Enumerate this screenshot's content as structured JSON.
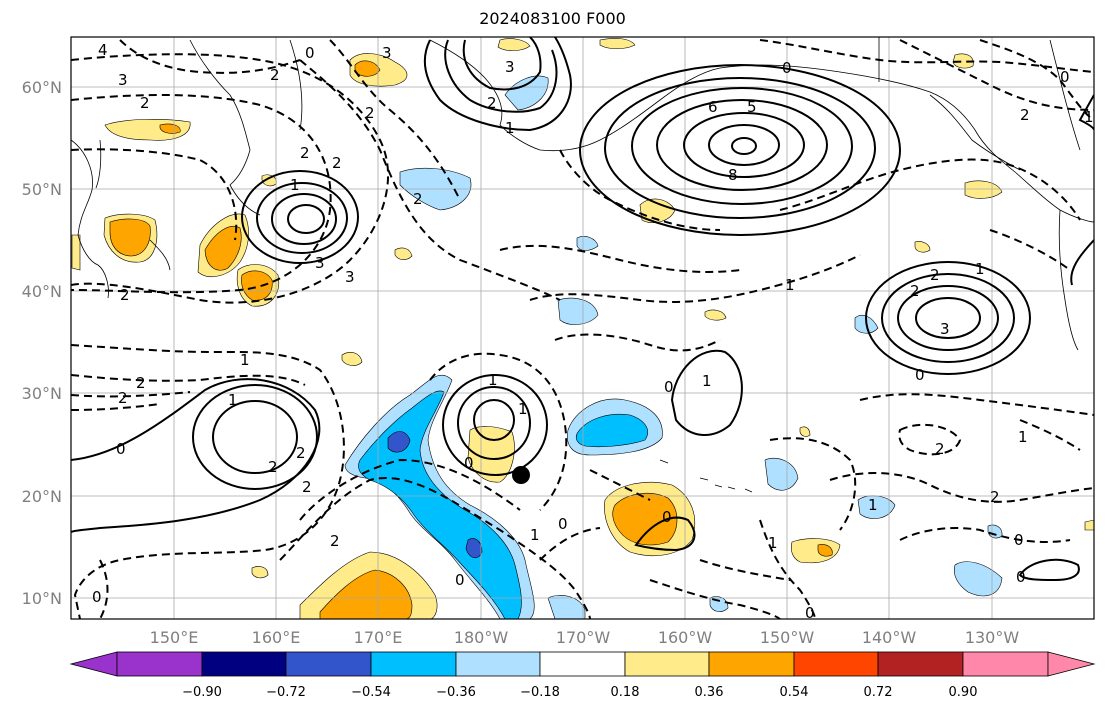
{
  "title": "2024083100 F000",
  "latitude_labels": [
    "60°N",
    "50°N",
    "40°N",
    "30°N",
    "20°N",
    "10°N"
  ],
  "longitude_labels": [
    "150°E",
    "160°E",
    "170°E",
    "180°W",
    "170°W",
    "160°W",
    "150°W",
    "140°W",
    "130°W"
  ],
  "colorbar": {
    "tick_labels": [
      "−0.90",
      "−0.72",
      "−0.54",
      "−0.36",
      "−0.18",
      "0.18",
      "0.36",
      "0.54",
      "0.72",
      "0.90"
    ],
    "colors": [
      "#9933cc",
      "#000080",
      "#3355cc",
      "#00bfff",
      "#b0e0ff",
      "#ffffff",
      "#ffeb8a",
      "#ffa500",
      "#ff4500",
      "#b22222",
      "#ff88aa"
    ]
  },
  "contour_labels": [
    "4",
    "3",
    "2",
    "2",
    "0",
    "3",
    "1",
    "2",
    "0",
    "6",
    "5",
    "8",
    "3",
    "2",
    "1",
    "2",
    "2",
    "3",
    "3",
    "2",
    "2",
    "1",
    "2",
    "0",
    "2",
    "2",
    "3",
    "0",
    "1",
    "1",
    "2",
    "2",
    "1",
    "1",
    "2",
    "2",
    "0",
    "2",
    "0",
    "1",
    "0",
    "1",
    "1",
    "2",
    "1",
    "2",
    "0",
    "0",
    "0",
    "2",
    "1",
    "0",
    "1",
    "0",
    "0",
    "0",
    "1"
  ],
  "marker": "black-dot"
}
